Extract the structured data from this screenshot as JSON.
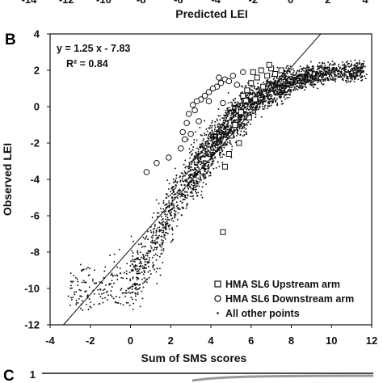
{
  "top_strip": {
    "xlabel": "Predicted LEI",
    "x_tick_labels": [
      "-14",
      "-12",
      "-10",
      "-8",
      "-6",
      "-4",
      "-2",
      "0",
      "2",
      "4"
    ]
  },
  "panel_b": {
    "label": "B",
    "equation": "y = 1.25 x - 7.83",
    "r2": "R² = 0.84"
  },
  "panel_c": {
    "label": "C",
    "y_tick_labels": [
      "1"
    ]
  },
  "chart_data": {
    "type": "scatter",
    "title": "",
    "xlabel": "Sum of SMS scores",
    "ylabel": "Observed LEI",
    "xlim": [
      -4,
      12
    ],
    "ylim": [
      -12,
      4
    ],
    "x_ticks": [
      -4,
      -2,
      0,
      2,
      4,
      6,
      8,
      10,
      12
    ],
    "y_ticks": [
      -12,
      -10,
      -8,
      -6,
      -4,
      -2,
      0,
      2,
      4
    ],
    "grid": false,
    "legend_position": "bottom-right",
    "trendline": {
      "slope": 1.25,
      "intercept": -7.83,
      "r2": 0.84
    },
    "series": [
      {
        "name": "HMA SL6 Upstream arm",
        "marker": "open-square",
        "points": [
          [
            6.1,
            1.9
          ],
          [
            6.3,
            1.6
          ],
          [
            6.5,
            2.0
          ],
          [
            6.0,
            1.3
          ],
          [
            5.8,
            0.9
          ],
          [
            5.6,
            0.6
          ],
          [
            5.5,
            -0.3
          ],
          [
            5.2,
            -1.0
          ],
          [
            5.0,
            -1.6
          ],
          [
            4.9,
            -2.6
          ],
          [
            4.7,
            -3.3
          ],
          [
            6.8,
            1.7
          ],
          [
            7.0,
            2.1
          ],
          [
            7.2,
            1.8
          ],
          [
            6.6,
            1.1
          ],
          [
            6.2,
            0.4
          ],
          [
            7.5,
            2.0
          ],
          [
            5.9,
            -0.6
          ],
          [
            5.4,
            -2.0
          ],
          [
            6.9,
            2.3
          ],
          [
            4.6,
            -6.9
          ]
        ]
      },
      {
        "name": "HMA SL6 Downstream arm",
        "marker": "open-circle",
        "points": [
          [
            4.7,
            1.5
          ],
          [
            4.9,
            1.4
          ],
          [
            5.1,
            1.7
          ],
          [
            5.3,
            1.2
          ],
          [
            4.5,
            1.3
          ],
          [
            4.3,
            1.1
          ],
          [
            4.1,
            1.0
          ],
          [
            3.9,
            0.8
          ],
          [
            3.7,
            0.6
          ],
          [
            3.5,
            0.4
          ],
          [
            3.3,
            0.3
          ],
          [
            3.1,
            0.1
          ],
          [
            3.2,
            -0.2
          ],
          [
            2.9,
            -0.4
          ],
          [
            3.4,
            -0.8
          ],
          [
            2.8,
            -0.9
          ],
          [
            3.0,
            -1.5
          ],
          [
            2.7,
            -1.8
          ],
          [
            2.5,
            -2.3
          ],
          [
            1.9,
            -2.8
          ],
          [
            1.3,
            -3.1
          ],
          [
            0.8,
            -3.6
          ],
          [
            5.6,
            1.9
          ],
          [
            4.6,
            0.2
          ],
          [
            3.9,
            0.3
          ],
          [
            2.6,
            -1.4
          ],
          [
            4.4,
            1.6
          ]
        ]
      },
      {
        "name": "All other points",
        "marker": "dot",
        "density_profile": [
          [
            -3,
            -10.5
          ],
          [
            -1,
            -9.8
          ],
          [
            0,
            -9.6
          ],
          [
            1,
            -8.2
          ],
          [
            2,
            -5.6
          ],
          [
            3,
            -3.8
          ],
          [
            4,
            -2.3
          ],
          [
            5,
            -0.9
          ],
          [
            6,
            0.2
          ],
          [
            7,
            0.9
          ],
          [
            8,
            1.4
          ],
          [
            9,
            1.7
          ],
          [
            10,
            1.9
          ],
          [
            11,
            2.0
          ]
        ],
        "count": 3200
      }
    ]
  }
}
